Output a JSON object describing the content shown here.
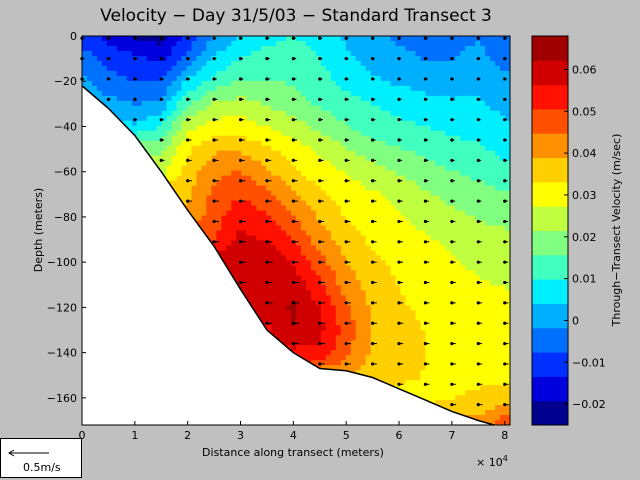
{
  "chart_data": {
    "type": "heatmap",
    "title": "Velocity − Day 31/5/03 − Standard Transect 3",
    "xlabel": "Distance along transect (meters)",
    "ylabel": "Depth (meters)",
    "x_multiplier_label": "× 10",
    "x_multiplier_exp": "4",
    "xlim": [
      0,
      81000
    ],
    "ylim": [
      -172,
      0
    ],
    "x_ticks": [
      0,
      1,
      2,
      3,
      4,
      5,
      6,
      7,
      8
    ],
    "y_ticks": [
      0,
      -20,
      -40,
      -60,
      -80,
      -100,
      -120,
      -140,
      -160
    ],
    "colorbar": {
      "label": "Through−Transect Velocity (m/sec)",
      "range": [
        -0.025,
        0.068
      ],
      "ticks": [
        "0.06",
        "0.05",
        "0.04",
        "0.03",
        "0.02",
        "0.01",
        "0",
        "−0.01",
        "−0.02"
      ],
      "tick_values": [
        0.06,
        0.05,
        0.04,
        0.03,
        0.02,
        0.01,
        0,
        -0.01,
        -0.02
      ],
      "colors": [
        "#00008f",
        "#0000df",
        "#0030ff",
        "#0070ff",
        "#00b0ff",
        "#00efff",
        "#40ffbf",
        "#80ff80",
        "#bfff40",
        "#ffff00",
        "#ffcf00",
        "#ff9000",
        "#ff5000",
        "#ff1000",
        "#d00000",
        "#a00000"
      ]
    },
    "seabed": [
      [
        0,
        -22
      ],
      [
        5000,
        -32
      ],
      [
        10000,
        -44
      ],
      [
        15000,
        -60
      ],
      [
        20000,
        -77
      ],
      [
        25000,
        -93
      ],
      [
        30000,
        -112
      ],
      [
        35000,
        -130
      ],
      [
        40000,
        -140
      ],
      [
        45000,
        -147
      ],
      [
        50000,
        -148
      ],
      [
        55000,
        -151
      ],
      [
        60000,
        -156
      ],
      [
        65000,
        -161
      ],
      [
        70000,
        -166
      ],
      [
        75000,
        -170
      ],
      [
        78000,
        -172
      ]
    ],
    "velocity_grid": {
      "x": [
        0,
        5000,
        10000,
        15000,
        20000,
        25000,
        30000,
        35000,
        40000,
        45000,
        50000,
        55000,
        60000,
        65000,
        70000,
        75000,
        80000
      ],
      "depth": [
        0,
        -10,
        -20,
        -30,
        -40,
        -50,
        -60,
        -70,
        -80,
        -90,
        -100,
        -110,
        -120,
        -130,
        -140,
        -150,
        -160,
        -170
      ],
      "values": [
        [
          -0.01,
          -0.015,
          -0.02,
          -0.022,
          -0.012,
          -0.002,
          0.005,
          0.008,
          0.01,
          0.008,
          0.003,
          0.0,
          -0.003,
          -0.005,
          -0.004,
          -0.002,
          -0.006
        ],
        [
          -0.005,
          -0.01,
          -0.012,
          -0.015,
          -0.005,
          0.005,
          0.01,
          0.012,
          0.012,
          0.01,
          0.005,
          0.002,
          0.0,
          -0.002,
          -0.002,
          0.0,
          -0.004
        ],
        [
          0.0,
          -0.005,
          -0.008,
          -0.008,
          0.005,
          0.012,
          0.016,
          0.016,
          0.015,
          0.012,
          0.008,
          0.005,
          0.003,
          0.002,
          0.001,
          0.003,
          0.0
        ],
        [
          null,
          0.0,
          -0.002,
          0.0,
          0.015,
          0.022,
          0.024,
          0.021,
          0.018,
          0.015,
          0.012,
          0.01,
          0.008,
          0.006,
          0.005,
          0.005,
          0.002
        ],
        [
          null,
          null,
          0.005,
          0.01,
          0.025,
          0.03,
          0.03,
          0.027,
          0.024,
          0.02,
          0.016,
          0.013,
          0.011,
          0.01,
          0.008,
          0.008,
          0.005
        ],
        [
          null,
          null,
          null,
          0.02,
          0.032,
          0.038,
          0.038,
          0.034,
          0.03,
          0.026,
          0.022,
          0.018,
          0.016,
          0.014,
          0.012,
          0.011,
          0.008
        ],
        [
          null,
          null,
          null,
          0.025,
          0.036,
          0.043,
          0.045,
          0.04,
          0.034,
          0.03,
          0.027,
          0.024,
          0.021,
          0.018,
          0.016,
          0.014,
          0.012
        ],
        [
          null,
          null,
          null,
          null,
          0.038,
          0.046,
          0.05,
          0.046,
          0.04,
          0.034,
          0.03,
          0.028,
          0.026,
          0.022,
          0.02,
          0.018,
          0.016
        ],
        [
          null,
          null,
          null,
          null,
          0.04,
          0.048,
          0.055,
          0.051,
          0.045,
          0.038,
          0.033,
          0.03,
          0.028,
          0.025,
          0.023,
          0.021,
          0.02
        ],
        [
          null,
          null,
          null,
          null,
          null,
          0.05,
          0.058,
          0.056,
          0.05,
          0.042,
          0.036,
          0.032,
          0.03,
          0.028,
          0.026,
          0.024,
          0.023
        ],
        [
          null,
          null,
          null,
          null,
          null,
          null,
          0.06,
          0.061,
          0.056,
          0.047,
          0.039,
          0.034,
          0.032,
          0.03,
          0.028,
          0.026,
          0.025
        ],
        [
          null,
          null,
          null,
          null,
          null,
          null,
          0.058,
          0.062,
          0.06,
          0.052,
          0.042,
          0.036,
          0.033,
          0.031,
          0.03,
          0.028,
          0.027
        ],
        [
          null,
          null,
          null,
          null,
          null,
          null,
          null,
          0.06,
          0.063,
          0.056,
          0.046,
          0.038,
          0.034,
          0.032,
          0.031,
          0.03,
          0.029
        ],
        [
          null,
          null,
          null,
          null,
          null,
          null,
          null,
          0.055,
          0.062,
          0.058,
          0.048,
          0.039,
          0.035,
          0.033,
          0.032,
          0.031,
          0.03
        ],
        [
          null,
          null,
          null,
          null,
          null,
          null,
          null,
          null,
          0.055,
          0.055,
          0.046,
          0.038,
          0.035,
          0.033,
          0.032,
          0.031,
          0.031
        ],
        [
          null,
          null,
          null,
          null,
          null,
          null,
          null,
          null,
          null,
          null,
          0.04,
          0.036,
          0.034,
          0.033,
          0.032,
          0.032,
          0.032
        ],
        [
          null,
          null,
          null,
          null,
          null,
          null,
          null,
          null,
          null,
          null,
          null,
          null,
          0.032,
          0.032,
          0.033,
          0.034,
          0.035
        ],
        [
          null,
          null,
          null,
          null,
          null,
          null,
          null,
          null,
          null,
          null,
          null,
          null,
          null,
          null,
          null,
          0.04,
          0.048
        ]
      ]
    },
    "scale_label": "0.5m/s"
  }
}
